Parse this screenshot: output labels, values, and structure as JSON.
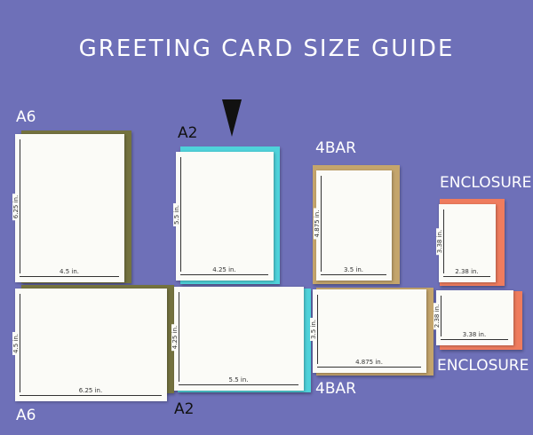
{
  "title": "GREETING CARD SIZE GUIDE",
  "cards": [
    {
      "label": "A6",
      "width": "4.5 in.",
      "height": "6.25 in."
    },
    {
      "label": "A6",
      "width": "6.25 in.",
      "height": "4.5 in."
    },
    {
      "label": "A2",
      "width": "4.25 in.",
      "height": "5.5 in."
    },
    {
      "label": "A2",
      "width": "5.5 in.",
      "height": "4.25 in."
    },
    {
      "label": "4BAR",
      "width": "3.5 in.",
      "height": "4.875 in."
    },
    {
      "label": "4BAR",
      "width": "4.875 in.",
      "height": "3.5 in."
    },
    {
      "label": "ENCLOSURE",
      "width": "2.38 in.",
      "height": "3.38 in."
    },
    {
      "label": "ENCLOSURE",
      "width": "3.38 in.",
      "height": "2.38 in."
    }
  ]
}
